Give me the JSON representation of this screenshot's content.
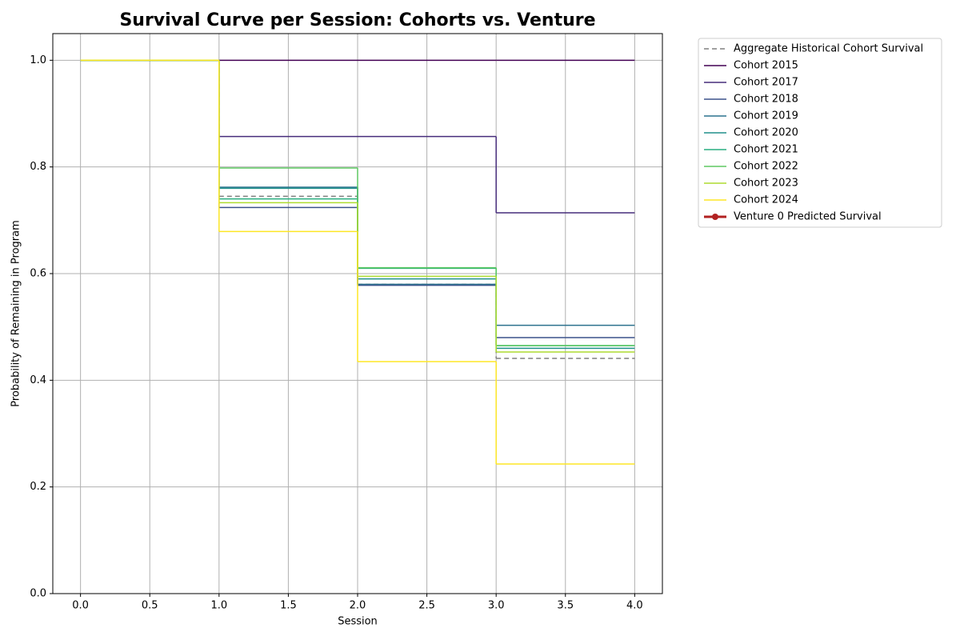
{
  "chart_data": {
    "type": "step",
    "title": "Survival Curve per Session: Cohorts vs. Venture",
    "xlabel": "Session",
    "ylabel": "Probability of Remaining in Program",
    "x": [
      0,
      1,
      2,
      3,
      4
    ],
    "xlim": [
      -0.2,
      4.2
    ],
    "ylim": [
      0,
      1.05
    ],
    "xticks": [
      {
        "value": 0,
        "label": "0.0"
      },
      0.5,
      {
        "value": 1,
        "label": "1.0"
      },
      1.5,
      {
        "value": 2,
        "label": "2.0"
      },
      2.5,
      {
        "value": 3,
        "label": "3.0"
      },
      3.5,
      {
        "value": 4,
        "label": "4.0"
      }
    ],
    "yticks": [
      {
        "value": 0,
        "label": "0.0"
      },
      0.2,
      0.4,
      0.6,
      0.8,
      {
        "value": 1,
        "label": "1.0"
      }
    ],
    "grid": true,
    "legend": "outside upper right",
    "series": [
      {
        "name": "Aggregate Historical Cohort Survival",
        "color": "#808080",
        "linestyle": "dashed",
        "values": [
          1.0,
          0.745,
          0.58,
          0.441,
          0.441
        ]
      },
      {
        "name": "Cohort 2015",
        "color": "#440154",
        "values": [
          1.0,
          1.0,
          1.0,
          1.0,
          1.0
        ]
      },
      {
        "name": "Cohort 2017",
        "color": "#472d7b",
        "values": [
          1.0,
          0.857,
          0.857,
          0.714,
          0.714
        ]
      },
      {
        "name": "Cohort 2018",
        "color": "#3b528b",
        "values": [
          1.0,
          0.724,
          0.578,
          0.48,
          0.48
        ]
      },
      {
        "name": "Cohort 2019",
        "color": "#2c728e",
        "values": [
          1.0,
          0.762,
          0.58,
          0.503,
          0.503
        ]
      },
      {
        "name": "Cohort 2020",
        "color": "#21918c",
        "values": [
          1.0,
          0.76,
          0.59,
          0.46,
          0.46
        ]
      },
      {
        "name": "Cohort 2021",
        "color": "#28ae80",
        "values": [
          1.0,
          0.74,
          0.61,
          0.465,
          0.465
        ]
      },
      {
        "name": "Cohort 2022",
        "color": "#5ec962",
        "values": [
          1.0,
          0.798,
          0.611,
          0.465,
          0.465
        ]
      },
      {
        "name": "Cohort 2023",
        "color": "#addc30",
        "values": [
          1.0,
          0.733,
          0.595,
          0.453,
          0.453
        ]
      },
      {
        "name": "Cohort 2024",
        "color": "#fde725",
        "values": [
          1.0,
          0.679,
          0.435,
          0.243,
          0.243
        ]
      },
      {
        "name": "Venture 0 Predicted Survival",
        "color": "#b22222",
        "linewidth": 3,
        "marker": "o",
        "values": [
          null,
          null,
          null,
          null,
          null
        ]
      }
    ]
  }
}
